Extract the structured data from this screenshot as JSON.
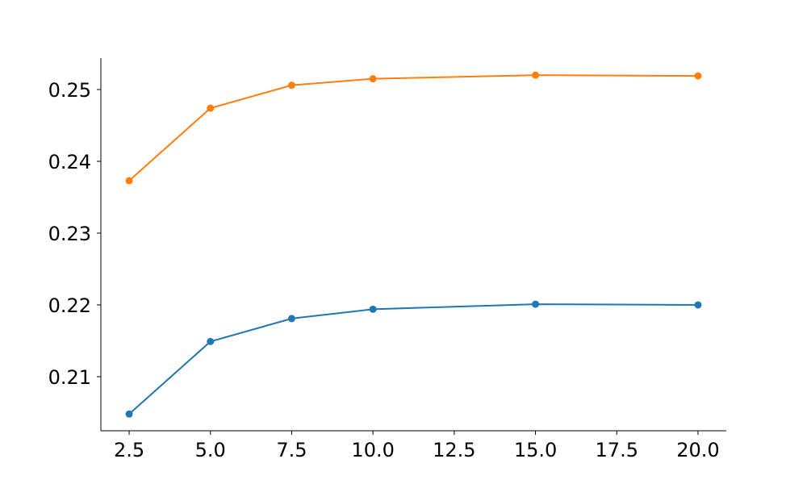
{
  "chart_data": {
    "type": "line",
    "x": [
      2.5,
      5,
      7.5,
      10,
      15,
      20
    ],
    "series": [
      {
        "color": "#1f77b4",
        "values": [
          0.2048,
          0.2149,
          0.2181,
          0.2194,
          0.2201,
          0.22
        ]
      },
      {
        "color": "#ff7f0e",
        "values": [
          0.2373,
          0.2474,
          0.2506,
          0.2515,
          0.252,
          0.2519
        ]
      }
    ],
    "xlim": [
      1.63,
      20.87
    ],
    "ylim": [
      0.20247,
      0.25438
    ],
    "xticks": [
      2.5,
      {
        "value": 5,
        "label": "5.0"
      },
      7.5,
      {
        "value": 10,
        "label": "10.0"
      },
      12.5,
      {
        "value": 15,
        "label": "15.0"
      },
      17.5,
      {
        "value": 20,
        "label": "20.0"
      }
    ],
    "yticks": [
      0.21,
      0.22,
      0.23,
      0.24,
      0.25
    ],
    "grid": false
  }
}
